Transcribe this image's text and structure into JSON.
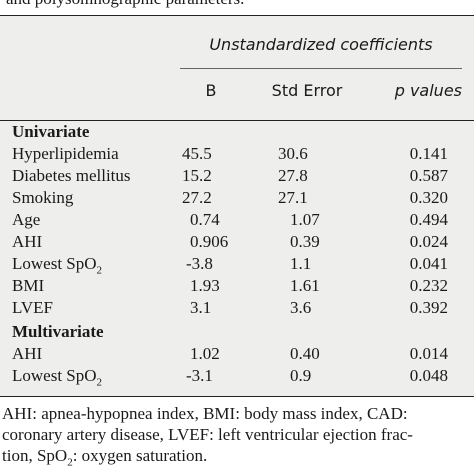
{
  "caption_top": "and polysomnographic parameters.",
  "table": {
    "group_header": "Unstandardized coefficients",
    "columns": [
      "B",
      "Std Error",
      "p values"
    ],
    "sections": [
      {
        "title": "Univariate",
        "rows": [
          {
            "label": "Hyperlipidemia",
            "b": "45.5",
            "se": "30.6",
            "p": "0.141"
          },
          {
            "label": "Diabetes mellitus",
            "b": "15.2",
            "se": "27.8",
            "p": "0.587"
          },
          {
            "label": "Smoking",
            "b": "27.2",
            "se": "27.1",
            "p": "0.320"
          },
          {
            "label": "Age",
            "b": "0.74",
            "se": "1.07",
            "p": "0.494"
          },
          {
            "label": "AHI",
            "b": "0.906",
            "se": "0.39",
            "p": "0.024"
          },
          {
            "label": "Lowest SpO",
            "label_sub": "2",
            "b": "-3.8",
            "se": "1.1",
            "p": "0.041"
          },
          {
            "label": "BMI",
            "b": "1.93",
            "se": "1.61",
            "p": "0.232"
          },
          {
            "label": "LVEF",
            "b": "3.1",
            "se": "3.6",
            "p": "0.392"
          }
        ]
      },
      {
        "title": "Multivariate",
        "rows": [
          {
            "label": "AHI",
            "b": "1.02",
            "se": "0.40",
            "p": "0.014"
          },
          {
            "label": "Lowest SpO",
            "label_sub": "2",
            "b": "-3.1",
            "se": "0.9",
            "p": "0.048"
          }
        ]
      }
    ]
  },
  "footnote": {
    "line1": "AHI: apnea-hypopnea index, BMI: body mass index, CAD:",
    "line2": "coronary artery disease, LVEF: left ventricular ejection frac-",
    "line3_a": "tion, SpO",
    "line3_sub": "2",
    "line3_b": ": oxygen saturation."
  }
}
